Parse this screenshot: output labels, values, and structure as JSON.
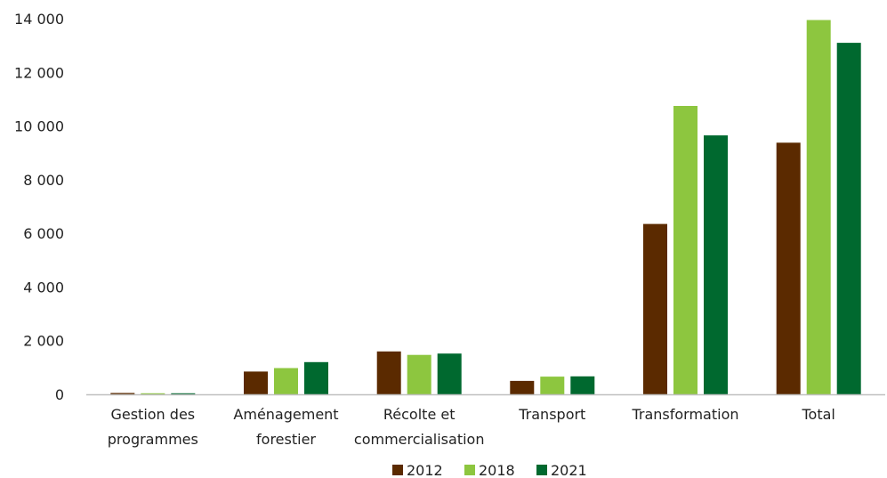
{
  "chart_data": {
    "type": "bar",
    "categories": [
      [
        "Gestion des",
        "programmes"
      ],
      [
        "Aménagement",
        "forestier"
      ],
      [
        "Récolte et",
        "commercialisation"
      ],
      [
        "Transport"
      ],
      [
        "Transformation"
      ],
      [
        "Total"
      ]
    ],
    "series": [
      {
        "name": "2012",
        "color": "#5b2a00",
        "values": [
          50,
          850,
          1600,
          500,
          6350,
          9380
        ]
      },
      {
        "name": "2018",
        "color": "#8dc63f",
        "values": [
          40,
          980,
          1470,
          660,
          10750,
          13950
        ]
      },
      {
        "name": "2021",
        "color": "#00692f",
        "values": [
          40,
          1200,
          1520,
          670,
          9650,
          13100
        ]
      }
    ],
    "ylim": [
      0,
      14000
    ],
    "yticks": [
      0,
      2000,
      4000,
      6000,
      8000,
      10000,
      12000,
      14000
    ],
    "ytick_labels": [
      "0",
      "2 000",
      "4 000",
      "6 000",
      "8 000",
      "10 000",
      "12 000",
      "14 000"
    ],
    "grid": false,
    "legend_position": "bottom-center",
    "title": "",
    "xlabel": "",
    "ylabel": ""
  }
}
